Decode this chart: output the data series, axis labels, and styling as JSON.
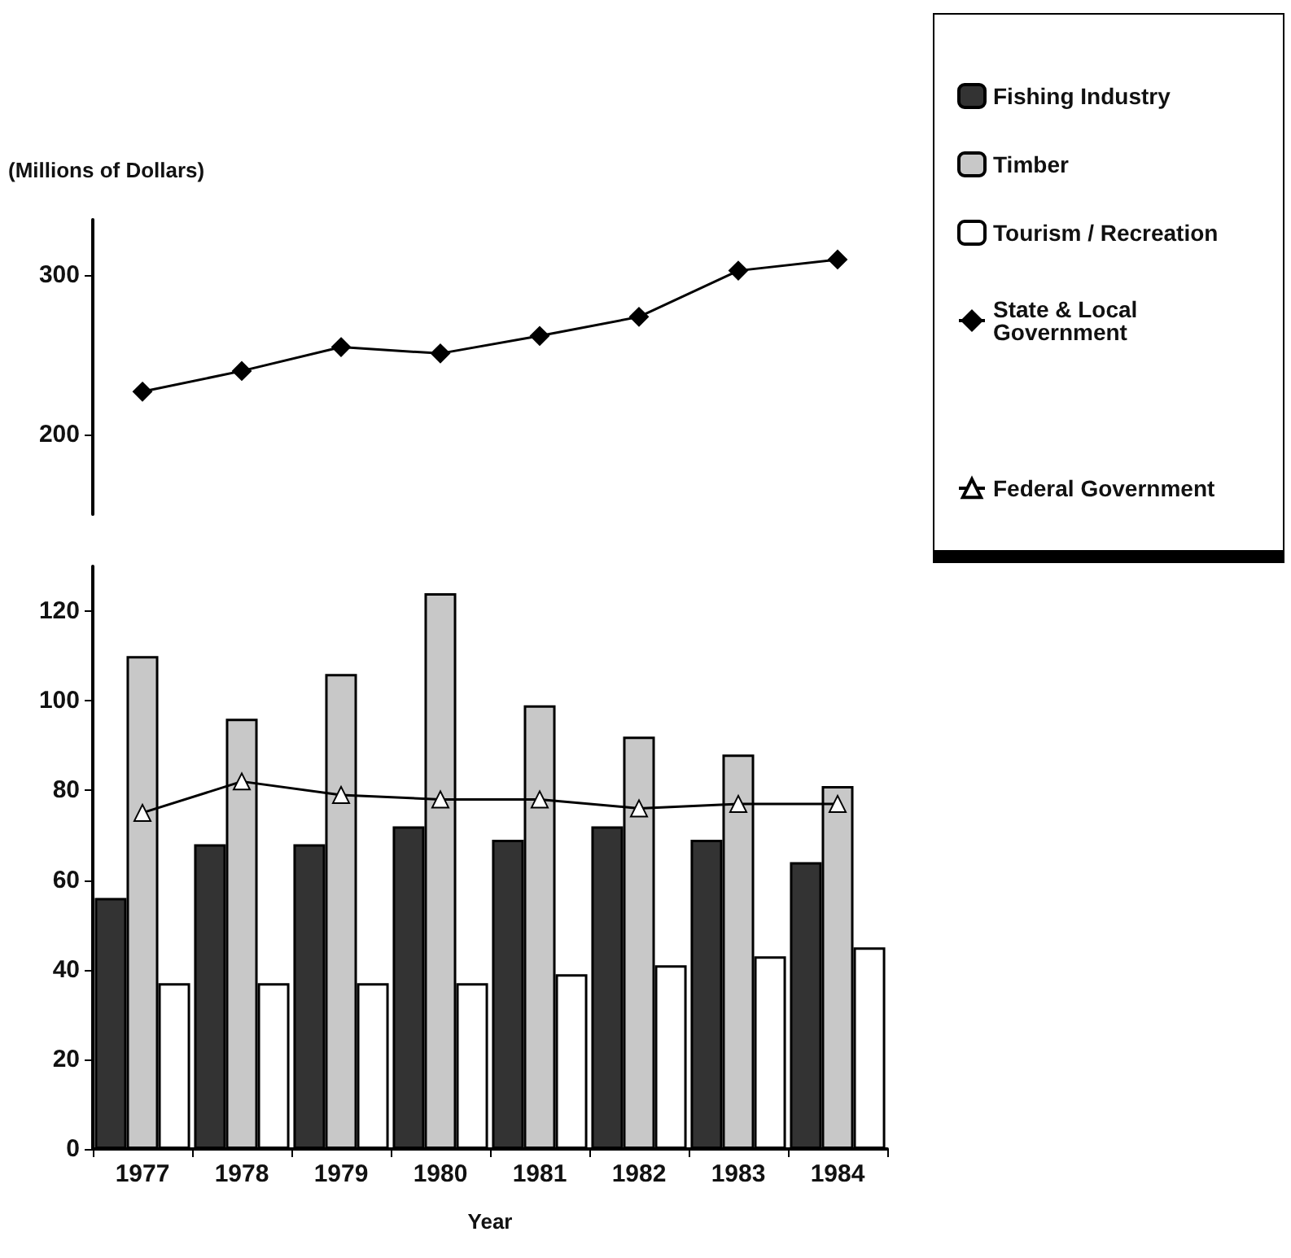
{
  "chart_data": [
    {
      "type": "line",
      "ylabel": "(Millions of Dollars)",
      "categories": [
        "1977",
        "1978",
        "1979",
        "1980",
        "1981",
        "1982",
        "1983",
        "1984"
      ],
      "ylim": [
        150,
        335
      ],
      "yticks": [
        200,
        300
      ],
      "tick_labels": "y",
      "grid": false,
      "legend": "top right",
      "series": [
        {
          "name": "State & Local Government",
          "color": "#000000",
          "marker": "diamond",
          "values": [
            227,
            240,
            255,
            251,
            262,
            274,
            303,
            310
          ]
        }
      ]
    },
    {
      "type": "bar",
      "xlabel": "Year",
      "categories": [
        "1977",
        "1978",
        "1979",
        "1980",
        "1981",
        "1982",
        "1983",
        "1984"
      ],
      "ylim": [
        0,
        130
      ],
      "yticks": [
        0,
        20,
        40,
        60,
        80,
        100,
        120
      ],
      "grid": false,
      "legend": "top right",
      "series": [
        {
          "name": "Fishing Industry",
          "color": "#333333",
          "values": [
            56,
            68,
            68,
            72,
            69,
            72,
            69,
            64
          ]
        },
        {
          "name": "Timber",
          "color": "#c8c8c8",
          "values": [
            110,
            96,
            106,
            124,
            99,
            92,
            88,
            81
          ]
        },
        {
          "name": "Tourism / Recreation",
          "color": "#ffffff",
          "values": [
            37,
            37,
            37,
            37,
            39,
            41,
            43,
            45
          ]
        },
        {
          "name": "Federal Government",
          "type": "line",
          "color": "#000000",
          "marker": "triangle",
          "values": [
            75,
            82,
            79,
            78,
            78,
            76,
            77,
            77
          ]
        }
      ]
    }
  ]
}
